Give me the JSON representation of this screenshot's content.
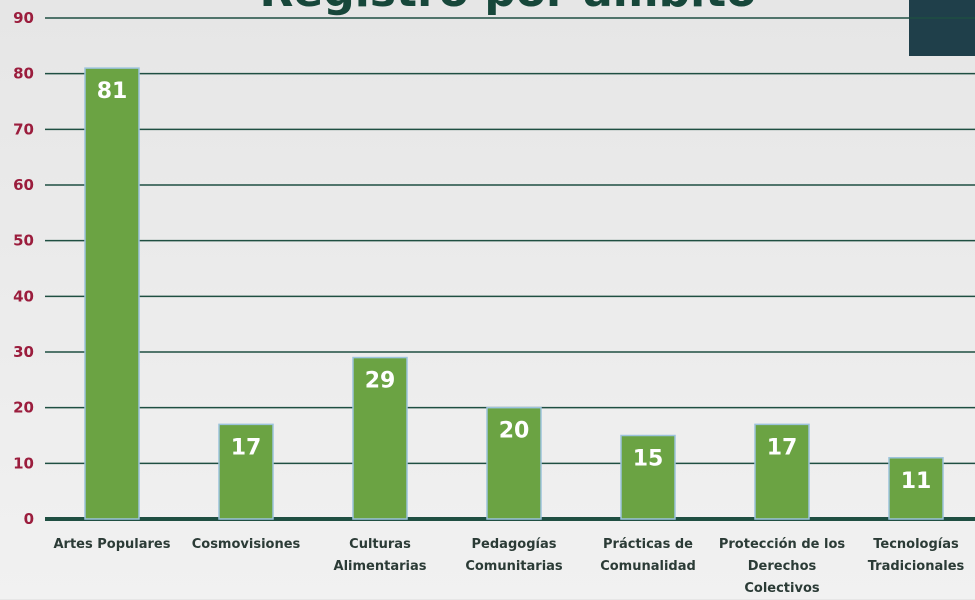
{
  "chart_data": {
    "type": "bar",
    "title": "Registro por ámbito",
    "categories": [
      "Artes Populares",
      "Cosmovisiones",
      "Culturas Alimentarias",
      "Pedagogías Comunitarias",
      "Prácticas de Comunalidad",
      "Protección de los Derechos Colectivos",
      "Tecnologías Tradicionales"
    ],
    "values": [
      81,
      17,
      29,
      20,
      15,
      17,
      11
    ],
    "color": "#6ba343",
    "ylim": [
      0,
      90
    ],
    "yticks": [
      0,
      10,
      20,
      30,
      40,
      50,
      60,
      70,
      80,
      90
    ],
    "grid": true
  }
}
